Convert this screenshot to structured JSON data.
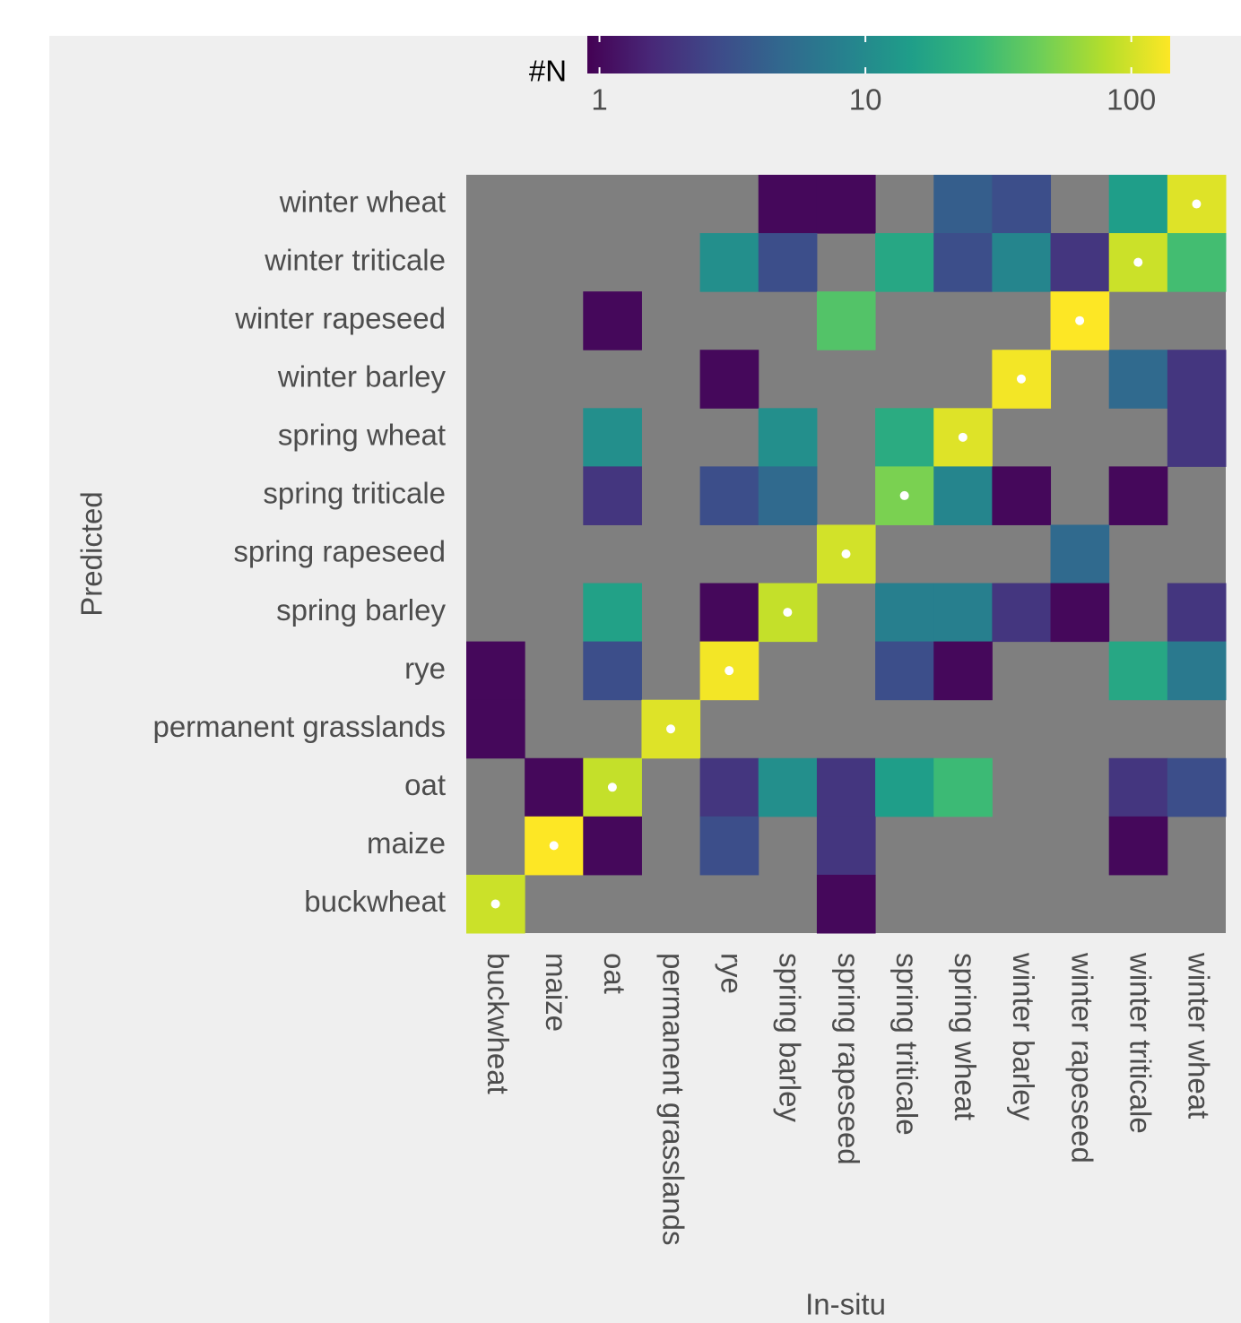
{
  "chart_data": {
    "type": "heatmap",
    "xlabel": "In-situ",
    "ylabel": "Predicted",
    "legend_title": "#N",
    "x_categories": [
      "buckwheat",
      "maize",
      "oat",
      "permanent grasslands",
      "rye",
      "spring barley",
      "spring rapeseed",
      "spring triticale",
      "spring wheat",
      "winter barley",
      "winter rapeseed",
      "winter triticale",
      "winter wheat"
    ],
    "y_categories": [
      "winter wheat",
      "winter triticale",
      "winter rapeseed",
      "winter barley",
      "spring wheat",
      "spring triticale",
      "spring rapeseed",
      "spring barley",
      "rye",
      "permanent grasslands",
      "oat",
      "maize",
      "buckwheat"
    ],
    "values": [
      [
        null,
        null,
        null,
        null,
        null,
        1,
        1,
        null,
        4,
        3,
        null,
        15,
        110
      ],
      [
        null,
        null,
        null,
        null,
        11,
        3,
        null,
        18,
        3,
        9,
        2,
        95,
        30
      ],
      [
        null,
        null,
        1,
        null,
        null,
        null,
        35,
        null,
        null,
        null,
        140,
        null,
        null
      ],
      [
        null,
        null,
        null,
        null,
        1,
        null,
        null,
        null,
        null,
        130,
        null,
        5,
        2
      ],
      [
        null,
        null,
        11,
        null,
        null,
        11,
        null,
        20,
        110,
        null,
        null,
        null,
        2
      ],
      [
        null,
        null,
        2,
        null,
        3,
        5,
        null,
        50,
        9,
        1,
        null,
        1,
        null
      ],
      [
        null,
        null,
        null,
        null,
        null,
        null,
        100,
        null,
        null,
        null,
        5,
        null,
        null
      ],
      [
        null,
        null,
        16,
        null,
        1,
        90,
        null,
        8,
        8,
        2,
        1,
        null,
        2
      ],
      [
        1,
        null,
        3,
        null,
        130,
        null,
        null,
        3,
        1,
        null,
        null,
        18,
        7
      ],
      [
        1,
        null,
        null,
        110,
        null,
        null,
        null,
        null,
        null,
        null,
        null,
        null,
        null
      ],
      [
        null,
        1,
        90,
        null,
        2,
        11,
        2,
        15,
        28,
        null,
        null,
        2,
        3
      ],
      [
        null,
        140,
        1,
        null,
        3,
        null,
        2,
        null,
        null,
        null,
        null,
        1,
        null
      ],
      [
        95,
        null,
        null,
        null,
        null,
        null,
        1,
        null,
        null,
        null,
        null,
        null,
        null
      ]
    ],
    "color_log_scale": true,
    "clim": [
      0.9,
      140
    ],
    "cticks": [
      1,
      10,
      100
    ],
    "colormap": [
      "#440154",
      "#482878",
      "#3e4a89",
      "#31688e",
      "#26828e",
      "#1f9e89",
      "#35b779",
      "#6ece58",
      "#b5de2b",
      "#fde725"
    ],
    "na_color": "#7f7f7f"
  }
}
